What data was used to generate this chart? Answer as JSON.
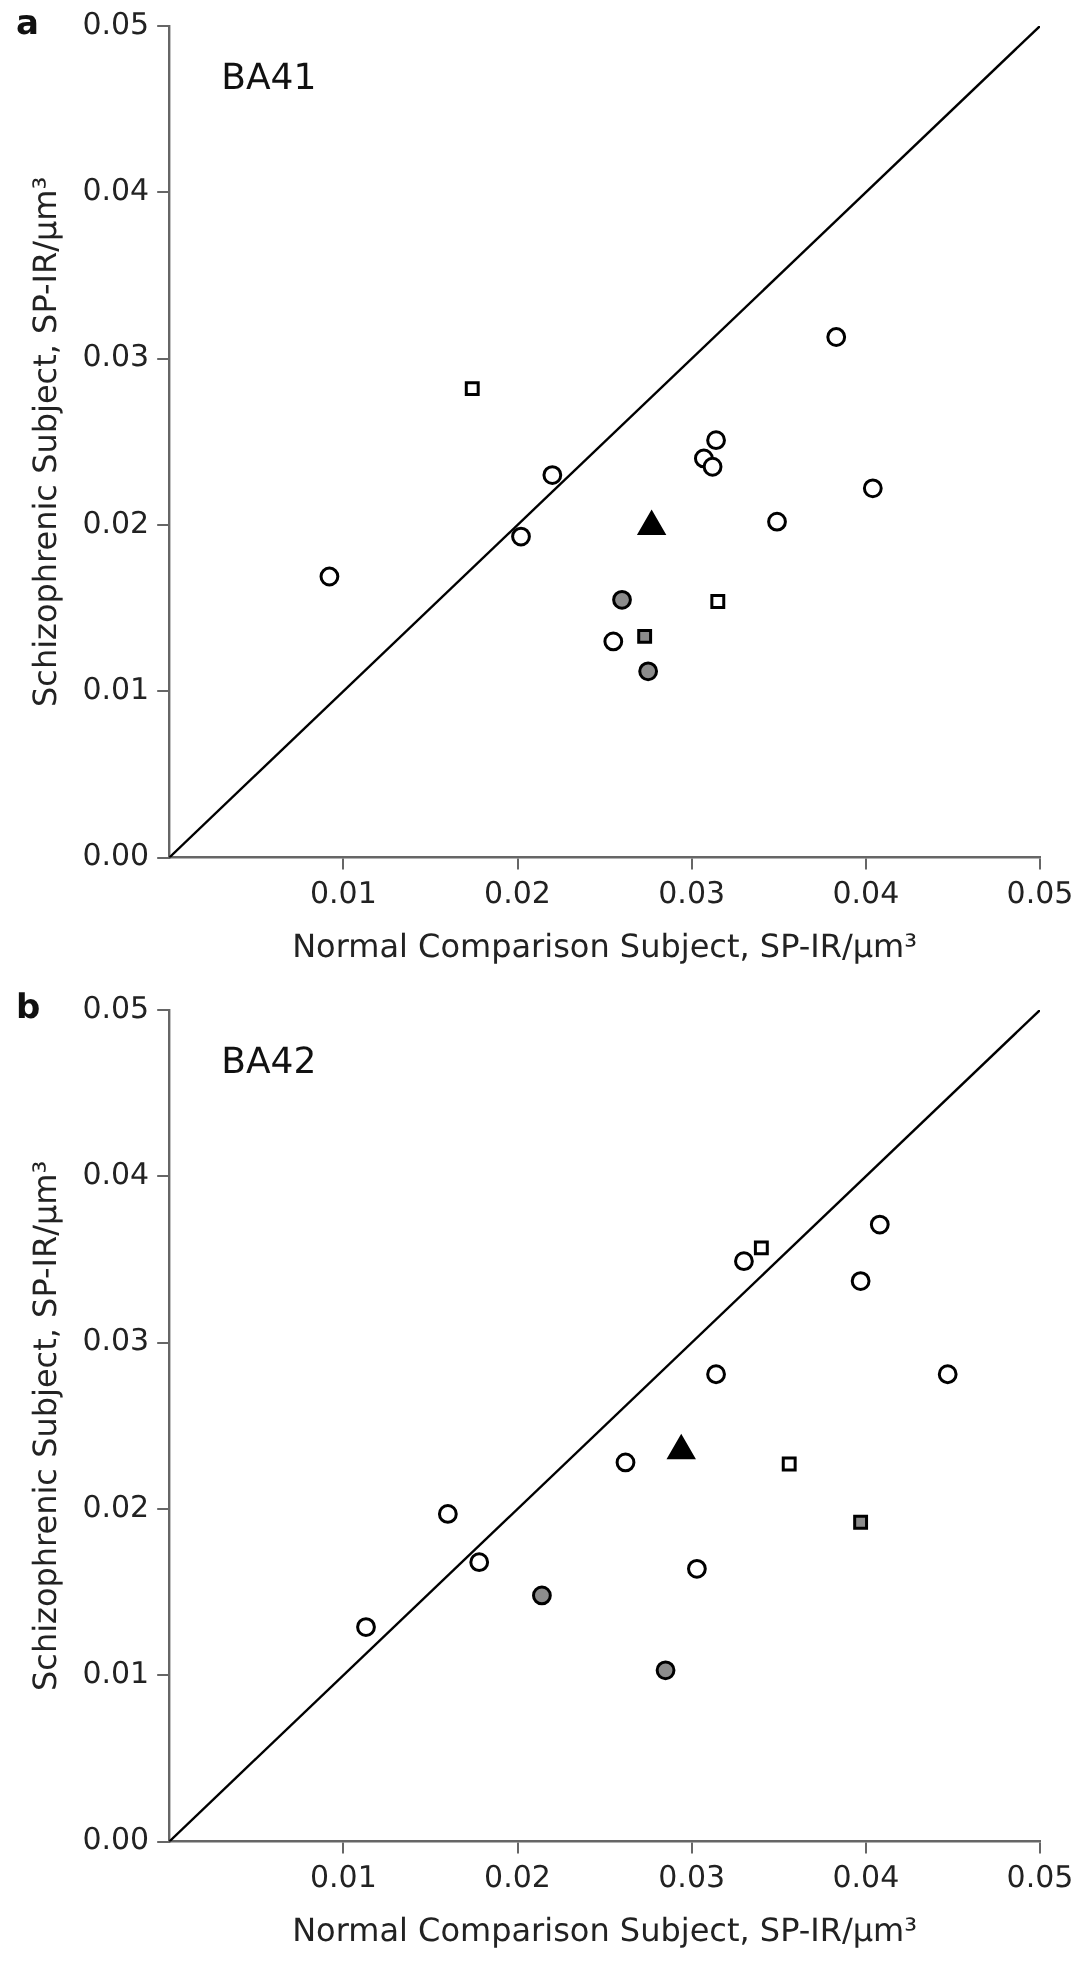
{
  "chart_data": [
    {
      "type": "scatter",
      "title": "BA41",
      "annotations": [
        "a"
      ],
      "xlabel": "Normal Comparison Subject, SP-IR/μm³",
      "ylabel": "Schizophrenic Subject, SP-IR/μm³",
      "xlim": [
        0,
        0.05
      ],
      "ylim": [
        0,
        0.05
      ],
      "xticks": [
        0.01,
        0.02,
        0.03,
        0.04,
        0.05
      ],
      "yticks": [
        {
          "value": 0,
          "label": "0.00"
        },
        0.01,
        0.02,
        0.03,
        0.04,
        0.05
      ],
      "grid": false,
      "legend": false,
      "series": [
        {
          "type": "line",
          "color": "#000000",
          "marker": "none",
          "x": [
            0,
            0.05
          ],
          "values": [
            0,
            0.05
          ]
        },
        {
          "color": "#ffffff",
          "marker": "circle",
          "x": [
            0.0092,
            0.0202,
            0.022,
            0.0255,
            0.0307,
            0.0312,
            0.0314,
            0.0349,
            0.0383,
            0.0404
          ],
          "values": [
            0.0169,
            0.0193,
            0.023,
            0.013,
            0.024,
            0.0235,
            0.0251,
            0.0202,
            0.0313,
            0.0222
          ]
        },
        {
          "color": "#8c8c8c",
          "marker": "circle",
          "x": [
            0.026,
            0.0275
          ],
          "values": [
            0.0155,
            0.0112
          ]
        },
        {
          "color": "#ffffff",
          "marker": "square",
          "x": [
            0.0174,
            0.0315
          ],
          "values": [
            0.0282,
            0.0154
          ]
        },
        {
          "color": "#8c8c8c",
          "marker": "square",
          "x": [
            0.0273
          ],
          "values": [
            0.0133
          ]
        },
        {
          "color": "#000000",
          "marker": "triangle",
          "x": [
            0.0277
          ],
          "values": [
            0.0199
          ]
        }
      ]
    },
    {
      "type": "scatter",
      "title": "BA42",
      "annotations": [
        "b"
      ],
      "xlabel": "Normal Comparison Subject, SP-IR/μm³",
      "ylabel": "Schizophrenic Subject, SP-IR/μm³",
      "xlim": [
        0,
        0.05
      ],
      "ylim": [
        0,
        0.05
      ],
      "xticks": [
        0.01,
        0.02,
        0.03,
        0.04,
        0.05
      ],
      "yticks": [
        {
          "value": 0,
          "label": "0.00"
        },
        0.01,
        0.02,
        0.03,
        0.04,
        0.05
      ],
      "grid": false,
      "legend": false,
      "series": [
        {
          "type": "line",
          "color": "#000000",
          "marker": "none",
          "x": [
            0,
            0.05
          ],
          "values": [
            0,
            0.05
          ]
        },
        {
          "color": "#ffffff",
          "marker": "circle",
          "x": [
            0.0113,
            0.016,
            0.0178,
            0.0262,
            0.0303,
            0.0314,
            0.033,
            0.0397,
            0.0408,
            0.0447
          ],
          "values": [
            0.0129,
            0.0197,
            0.0168,
            0.0228,
            0.0164,
            0.0281,
            0.0349,
            0.0337,
            0.0371,
            0.0281
          ]
        },
        {
          "color": "#8c8c8c",
          "marker": "circle",
          "x": [
            0.0214,
            0.0285
          ],
          "values": [
            0.0148,
            0.0103
          ]
        },
        {
          "color": "#ffffff",
          "marker": "square",
          "x": [
            0.034,
            0.0356
          ],
          "values": [
            0.0357,
            0.0227
          ]
        },
        {
          "color": "#8c8c8c",
          "marker": "square",
          "x": [
            0.0397
          ],
          "values": [
            0.0192
          ]
        },
        {
          "color": "#000000",
          "marker": "triangle",
          "x": [
            0.0294
          ],
          "values": [
            0.0235
          ]
        }
      ]
    }
  ]
}
